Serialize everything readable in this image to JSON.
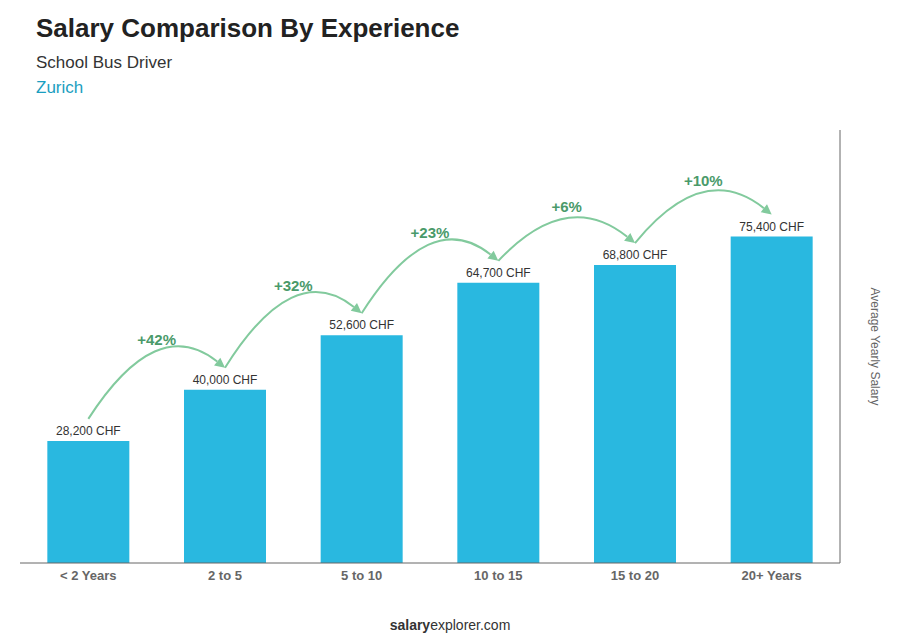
{
  "chart_data": {
    "type": "bar",
    "title": "Salary Comparison By Experience",
    "subtitle": "School Bus Driver",
    "categories": [
      "< 2 Years",
      "2 to 5",
      "5 to 10",
      "10 to 15",
      "15 to 20",
      "20+ Years"
    ],
    "values": [
      28200,
      40000,
      52600,
      64700,
      68800,
      75400
    ],
    "value_labels": [
      "28,200 CHF",
      "40,000 CHF",
      "52,600 CHF",
      "64,700 CHF",
      "68,800 CHF",
      "75,400 CHF"
    ],
    "data_labels": true,
    "ylabel": "Average Yearly Salary",
    "ylim": [
      0,
      100000
    ],
    "tick_labels": "x",
    "grid": false,
    "color": "#29b8e0",
    "annotations": {
      "city": "Zurich",
      "footer": [
        "salary",
        "explorer.com"
      ],
      "changes": [
        {
          "text": "+42%",
          "from": "< 2 Years",
          "to": "2 to 5"
        },
        {
          "text": "+32%",
          "from": "2 to 5",
          "to": "5 to 10"
        },
        {
          "text": "+23%",
          "from": "5 to 10",
          "to": "10 to 15"
        },
        {
          "text": "+6%",
          "from": "10 to 15",
          "to": "15 to 20"
        },
        {
          "text": "+10%",
          "from": "15 to 20",
          "to": "20+ Years"
        }
      ]
    }
  }
}
